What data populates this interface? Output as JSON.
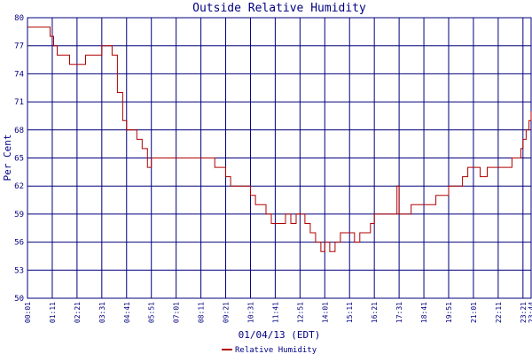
{
  "colors": {
    "background": "#ffffff",
    "grid": "#00007f",
    "text": "#00007f",
    "series": "#b00000"
  },
  "chart_data": {
    "type": "line",
    "title": "Outside Relative Humidity",
    "ylabel": "Per Cent",
    "xlabel": "01/04/13 (EDT)",
    "ylim": [
      50,
      80
    ],
    "yticks": [
      50,
      53,
      56,
      59,
      62,
      65,
      68,
      71,
      74,
      77,
      80
    ],
    "xticks": [
      "00:01",
      "01:11",
      "02:21",
      "03:31",
      "04:41",
      "05:51",
      "07:01",
      "08:11",
      "09:21",
      "10:31",
      "11:41",
      "12:51",
      "14:01",
      "15:11",
      "16:21",
      "17:31",
      "18:41",
      "19:51",
      "21:01",
      "22:11",
      "23:21",
      "23:44"
    ],
    "grid": true,
    "legend_position": "bottom-right",
    "series": [
      {
        "name": "Relative Humidity",
        "x": [
          "00:01",
          "00:30",
          "01:05",
          "01:15",
          "01:25",
          "01:40",
          "02:00",
          "02:20",
          "02:45",
          "03:10",
          "03:31",
          "03:45",
          "04:00",
          "04:15",
          "04:30",
          "04:41",
          "04:55",
          "05:10",
          "05:25",
          "05:40",
          "05:51",
          "06:05",
          "06:20",
          "06:35",
          "06:50",
          "07:10",
          "07:30",
          "07:50",
          "08:11",
          "08:30",
          "08:50",
          "09:05",
          "09:21",
          "09:35",
          "09:50",
          "10:05",
          "10:20",
          "10:31",
          "10:45",
          "11:00",
          "11:15",
          "11:30",
          "11:41",
          "11:55",
          "12:10",
          "12:25",
          "12:40",
          "12:51",
          "13:05",
          "13:20",
          "13:35",
          "13:50",
          "14:01",
          "14:15",
          "14:30",
          "14:45",
          "15:00",
          "15:11",
          "15:25",
          "15:40",
          "15:55",
          "16:10",
          "16:21",
          "16:35",
          "16:50",
          "17:05",
          "17:15",
          "17:20",
          "17:25",
          "17:31",
          "17:50",
          "18:05",
          "18:20",
          "18:41",
          "19:00",
          "19:15",
          "19:35",
          "19:51",
          "20:10",
          "20:30",
          "20:45",
          "21:01",
          "21:20",
          "21:40",
          "22:00",
          "22:11",
          "22:30",
          "22:50",
          "23:05",
          "23:15",
          "23:21",
          "23:30",
          "23:38",
          "23:44"
        ],
        "y": [
          79,
          79,
          78,
          77,
          76,
          76,
          75,
          75,
          76,
          76,
          77,
          77,
          76,
          72,
          69,
          68,
          68,
          67,
          66,
          64,
          65,
          65,
          65,
          65,
          65,
          65,
          65,
          65,
          65,
          65,
          64,
          64,
          63,
          62,
          62,
          62,
          62,
          61,
          60,
          60,
          59,
          58,
          58,
          58,
          59,
          58,
          59,
          59,
          58,
          57,
          56,
          55,
          56,
          55,
          56,
          57,
          57,
          57,
          56,
          57,
          57,
          58,
          59,
          59,
          59,
          59,
          59,
          59,
          62,
          59,
          59,
          60,
          60,
          60,
          60,
          61,
          61,
          62,
          62,
          63,
          64,
          64,
          63,
          64,
          64,
          64,
          64,
          65,
          65,
          66,
          67,
          68,
          69,
          70
        ]
      }
    ]
  }
}
